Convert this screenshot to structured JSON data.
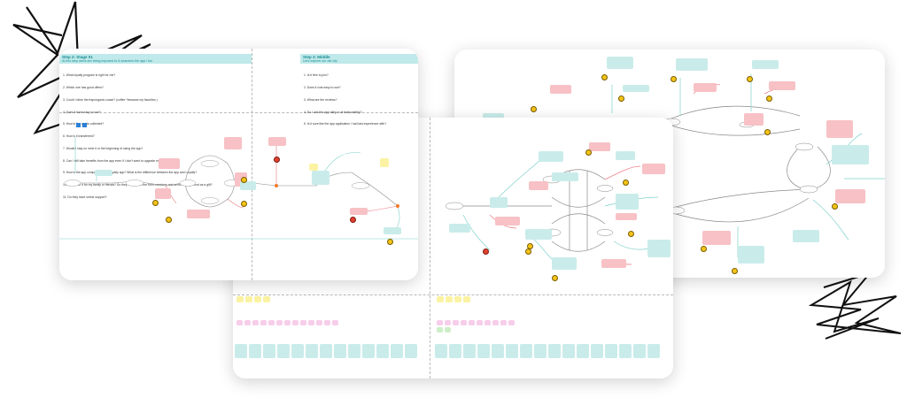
{
  "left_board": {
    "step_title": "Step 2: Stage 01",
    "step_subtitle": "At this step users are being exposed to & searches the app / tos",
    "questions": [
      "1. What loyalty program is right for me?",
      "2. Which one has good offers?",
      "3. Could I drink the frap/organic coach? (coffee *because my favorites )",
      "4. Does it have easy to use?",
      "5. How to the points collected?",
      "6. How is it transferred?",
      "7. Would I stay on mine it or the beginning of using the app?",
      "8. Can I still take benefits from the app even if I don't want to upgrade my tier?",
      "9. How is the app comparing to my loyalty app? What is the difference between the app and Loyalty?",
      "10. Can I use it for my family or friends? Do they have to be the form members and send it to my friend as a gift?",
      "11. Do they have online support?"
    ],
    "step3_title": "Step 3: Middle",
    "step3_subtitle": "Let's explore our old city",
    "step3_questions": [
      "1. Is it free to join?",
      "2. Does it cost easy to use?",
      "3. What are the reviews?",
      "4. Do I use the app daily or at least weekly?",
      "5. Is it sure like the app application I had last experience with?"
    ]
  },
  "colors": {
    "teal_header": "#bfe9ea",
    "note_red": "#f7c1c5",
    "note_teal": "#c9ecea",
    "note_yellow": "#fbf3a3",
    "note_pink": "#f7cdea",
    "emoji_happy": "#f3c417",
    "emoji_sad": "#e2402f"
  },
  "icons": [
    "scribble-decoration-icon",
    "smiley-icon",
    "sad-face-icon",
    "sticky-note-icon"
  ]
}
